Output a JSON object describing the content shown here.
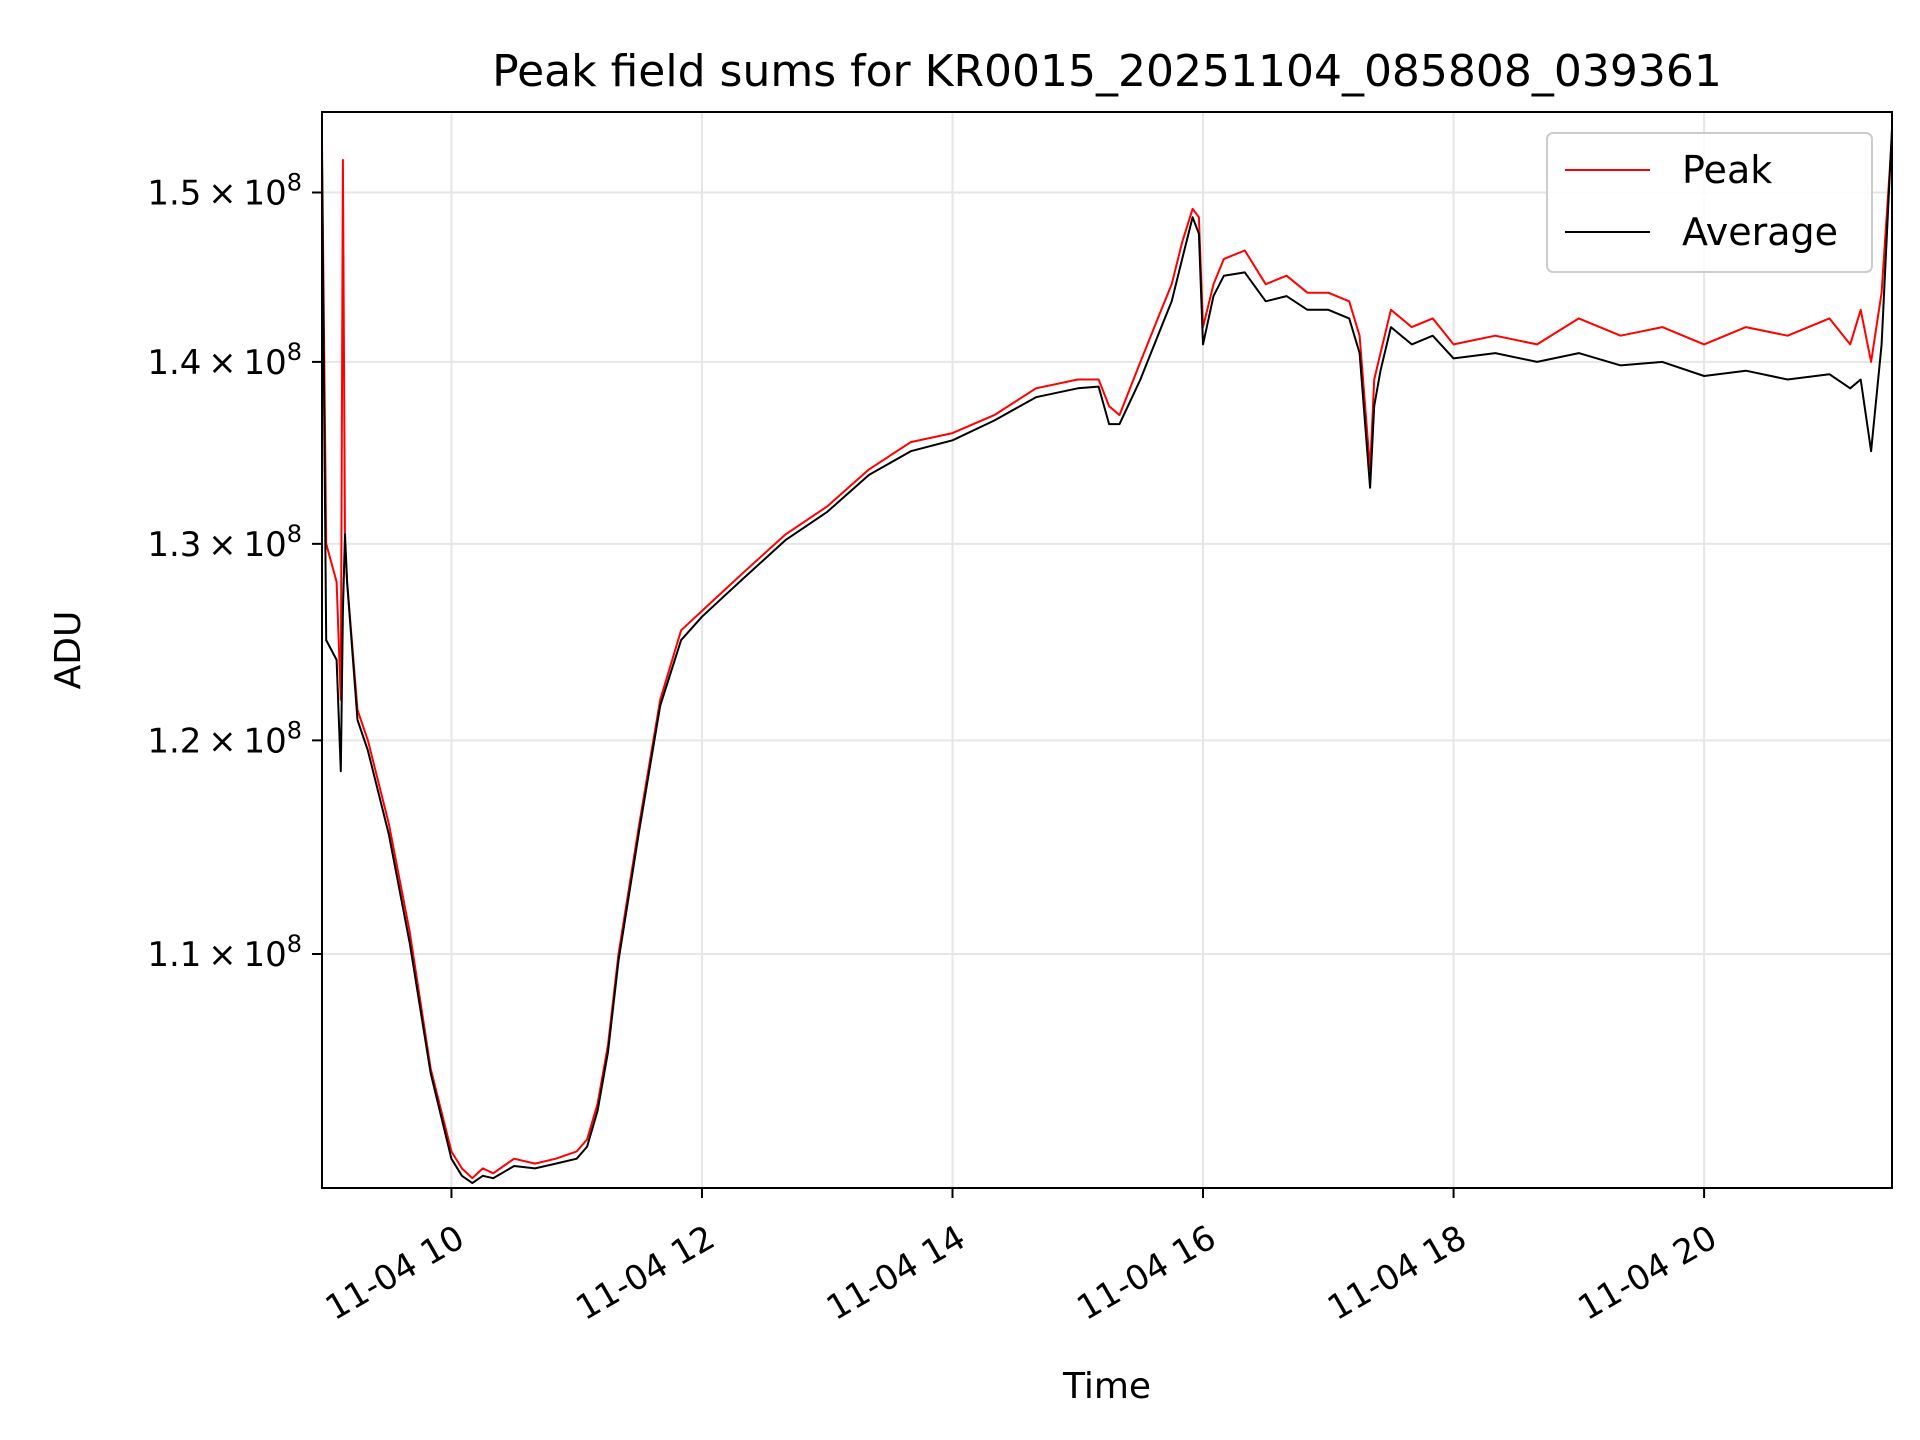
{
  "chart_data": {
    "type": "line",
    "title": "Peak field sums for KR0015_20251104_085808_039361",
    "xlabel": "Time",
    "ylabel": "ADU",
    "yscale": "log",
    "grid": true,
    "legend_position": "top-right",
    "xlim": [
      "11-04 08:58",
      "11-04 21:30"
    ],
    "ylim": [
      100000000,
      155000000
    ],
    "x_ticks": [
      {
        "value": "11-04 10:00",
        "label": "11-04 10"
      },
      {
        "value": "11-04 12:00",
        "label": "11-04 12"
      },
      {
        "value": "11-04 14:00",
        "label": "11-04 14"
      },
      {
        "value": "11-04 16:00",
        "label": "11-04 16"
      },
      {
        "value": "11-04 18:00",
        "label": "11-04 18"
      },
      {
        "value": "11-04 20:00",
        "label": "11-04 20"
      }
    ],
    "y_ticks": [
      {
        "value": 110000000,
        "mant": "1.1",
        "exp": "8"
      },
      {
        "value": 120000000,
        "mant": "1.2",
        "exp": "8"
      },
      {
        "value": 130000000,
        "mant": "1.3",
        "exp": "8"
      },
      {
        "value": 140000000,
        "mant": "1.4",
        "exp": "8"
      },
      {
        "value": 150000000,
        "mant": "1.5",
        "exp": "8"
      }
    ],
    "y_tick_separator": "×",
    "y_tick_base": "10",
    "series": [
      {
        "name": "Peak",
        "color": "#ff0000",
        "x": [
          "11-04 08:58",
          "11-04 09:00",
          "11-04 09:05",
          "11-04 09:07",
          "11-04 09:08",
          "11-04 09:09",
          "11-04 09:10",
          "11-04 09:15",
          "11-04 09:20",
          "11-04 09:30",
          "11-04 09:40",
          "11-04 09:50",
          "11-04 10:00",
          "11-04 10:05",
          "11-04 10:10",
          "11-04 10:15",
          "11-04 10:20",
          "11-04 10:30",
          "11-04 10:40",
          "11-04 10:50",
          "11-04 11:00",
          "11-04 11:05",
          "11-04 11:10",
          "11-04 11:15",
          "11-04 11:20",
          "11-04 11:30",
          "11-04 11:40",
          "11-04 11:50",
          "11-04 12:00",
          "11-04 12:10",
          "11-04 12:20",
          "11-04 12:40",
          "11-04 13:00",
          "11-04 13:20",
          "11-04 13:40",
          "11-04 14:00",
          "11-04 14:20",
          "11-04 14:40",
          "11-04 15:00",
          "11-04 15:10",
          "11-04 15:15",
          "11-04 15:20",
          "11-04 15:30",
          "11-04 15:40",
          "11-04 15:45",
          "11-04 15:50",
          "11-04 15:55",
          "11-04 15:58",
          "11-04 16:00",
          "11-04 16:05",
          "11-04 16:10",
          "11-04 16:20",
          "11-04 16:30",
          "11-04 16:40",
          "11-04 16:50",
          "11-04 17:00",
          "11-04 17:10",
          "11-04 17:15",
          "11-04 17:20",
          "11-04 17:22",
          "11-04 17:25",
          "11-04 17:30",
          "11-04 17:40",
          "11-04 17:50",
          "11-04 18:00",
          "11-04 18:20",
          "11-04 18:40",
          "11-04 19:00",
          "11-04 19:20",
          "11-04 19:40",
          "11-04 20:00",
          "11-04 20:20",
          "11-04 20:40",
          "11-04 21:00",
          "11-04 21:10",
          "11-04 21:15",
          "11-04 21:20",
          "11-04 21:25",
          "11-04 21:30"
        ],
        "y": [
          153000000,
          130000000,
          128000000,
          122000000,
          152000000,
          130000000,
          128000000,
          121500000,
          120000000,
          116000000,
          111000000,
          105000000,
          101500000,
          100800000,
          100400000,
          100800000,
          100600000,
          101200000,
          101000000,
          101200000,
          101500000,
          102000000,
          103500000,
          106000000,
          110000000,
          116000000,
          122000000,
          125500000,
          126500000,
          127500000,
          128500000,
          130500000,
          132000000,
          134000000,
          135500000,
          136000000,
          137000000,
          138500000,
          139000000,
          139000000,
          137500000,
          137000000,
          140000000,
          143000000,
          144500000,
          147000000,
          149000000,
          148500000,
          142000000,
          144500000,
          146000000,
          146500000,
          144500000,
          145000000,
          144000000,
          144000000,
          143500000,
          141500000,
          134000000,
          139000000,
          140500000,
          143000000,
          142000000,
          142500000,
          141000000,
          141500000,
          141000000,
          142500000,
          141500000,
          142000000,
          141000000,
          142000000,
          141500000,
          142500000,
          141000000,
          143000000,
          140000000,
          144000000,
          153500000
        ]
      },
      {
        "name": "Average",
        "color": "#000000",
        "x": [
          "11-04 08:58",
          "11-04 09:00",
          "11-04 09:05",
          "11-04 09:07",
          "11-04 09:08",
          "11-04 09:09",
          "11-04 09:10",
          "11-04 09:15",
          "11-04 09:20",
          "11-04 09:30",
          "11-04 09:40",
          "11-04 09:50",
          "11-04 10:00",
          "11-04 10:05",
          "11-04 10:10",
          "11-04 10:15",
          "11-04 10:20",
          "11-04 10:30",
          "11-04 10:40",
          "11-04 10:50",
          "11-04 11:00",
          "11-04 11:05",
          "11-04 11:10",
          "11-04 11:15",
          "11-04 11:20",
          "11-04 11:30",
          "11-04 11:40",
          "11-04 11:50",
          "11-04 12:00",
          "11-04 12:10",
          "11-04 12:20",
          "11-04 12:40",
          "11-04 13:00",
          "11-04 13:20",
          "11-04 13:40",
          "11-04 14:00",
          "11-04 14:20",
          "11-04 14:40",
          "11-04 15:00",
          "11-04 15:10",
          "11-04 15:15",
          "11-04 15:20",
          "11-04 15:30",
          "11-04 15:40",
          "11-04 15:45",
          "11-04 15:50",
          "11-04 15:55",
          "11-04 15:58",
          "11-04 16:00",
          "11-04 16:05",
          "11-04 16:10",
          "11-04 16:20",
          "11-04 16:30",
          "11-04 16:40",
          "11-04 16:50",
          "11-04 17:00",
          "11-04 17:10",
          "11-04 17:15",
          "11-04 17:20",
          "11-04 17:22",
          "11-04 17:25",
          "11-04 17:30",
          "11-04 17:40",
          "11-04 17:50",
          "11-04 18:00",
          "11-04 18:20",
          "11-04 18:40",
          "11-04 19:00",
          "11-04 19:20",
          "11-04 19:40",
          "11-04 20:00",
          "11-04 20:20",
          "11-04 20:40",
          "11-04 21:00",
          "11-04 21:10",
          "11-04 21:15",
          "11-04 21:20",
          "11-04 21:25",
          "11-04 21:30"
        ],
        "y": [
          152000000,
          125000000,
          124000000,
          118500000,
          126500000,
          130500000,
          128000000,
          121000000,
          119500000,
          115500000,
          110500000,
          104800000,
          101200000,
          100500000,
          100200000,
          100500000,
          100400000,
          100900000,
          100800000,
          101000000,
          101200000,
          101700000,
          103200000,
          105700000,
          109700000,
          115700000,
          121700000,
          125000000,
          126200000,
          127200000,
          128200000,
          130200000,
          131700000,
          133700000,
          135000000,
          135600000,
          136700000,
          138000000,
          138500000,
          138600000,
          136500000,
          136500000,
          139000000,
          142000000,
          143500000,
          146000000,
          148500000,
          147500000,
          141000000,
          143800000,
          145000000,
          145200000,
          143500000,
          143800000,
          143000000,
          143000000,
          142500000,
          140500000,
          133000000,
          137500000,
          139500000,
          142000000,
          141000000,
          141500000,
          140200000,
          140500000,
          140000000,
          140500000,
          139800000,
          140000000,
          139200000,
          139500000,
          139000000,
          139300000,
          138500000,
          139000000,
          135000000,
          141000000,
          154000000
        ]
      }
    ]
  }
}
